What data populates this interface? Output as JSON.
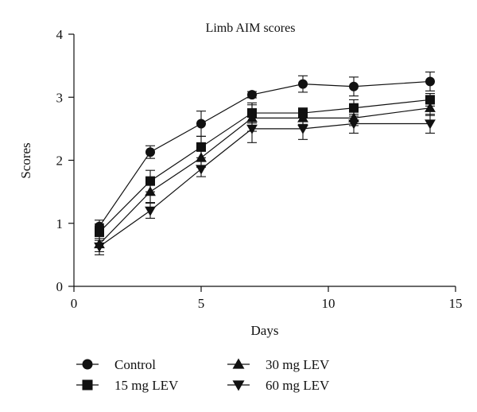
{
  "chart_data": {
    "type": "line",
    "title": "Limb AIM scores",
    "xlabel": "Days",
    "ylabel": "Scores",
    "xlim": [
      0,
      15
    ],
    "ylim": [
      0,
      4
    ],
    "xticks": [
      0,
      5,
      10,
      15
    ],
    "yticks": [
      0,
      1,
      2,
      3,
      4
    ],
    "grid": false,
    "legend_position": "bottom",
    "x": [
      1,
      3,
      5,
      7,
      9,
      11,
      14
    ],
    "series": [
      {
        "name": "Control",
        "marker": "circle",
        "values": [
          0.95,
          2.13,
          2.58,
          3.04,
          3.21,
          3.17,
          3.25
        ],
        "errors": [
          0.1,
          0.1,
          0.2,
          0.05,
          0.13,
          0.15,
          0.15
        ]
      },
      {
        "name": "15 mg LEV",
        "marker": "square",
        "values": [
          0.86,
          1.67,
          2.21,
          2.75,
          2.75,
          2.83,
          2.96
        ],
        "errors": [
          0.13,
          0.17,
          0.17,
          0.16,
          0.08,
          0.13,
          0.1
        ]
      },
      {
        "name": "30 mg LEV",
        "marker": "triangle-up",
        "values": [
          0.67,
          1.5,
          2.04,
          2.67,
          2.67,
          2.67,
          2.83
        ],
        "errors": [
          0.12,
          0.17,
          0.15,
          0.21,
          0.1,
          0.12,
          0.12
        ]
      },
      {
        "name": "60 mg LEV",
        "marker": "triangle-down",
        "values": [
          0.63,
          1.2,
          1.86,
          2.5,
          2.5,
          2.58,
          2.58
        ],
        "errors": [
          0.13,
          0.12,
          0.12,
          0.22,
          0.17,
          0.15,
          0.15
        ]
      }
    ]
  }
}
